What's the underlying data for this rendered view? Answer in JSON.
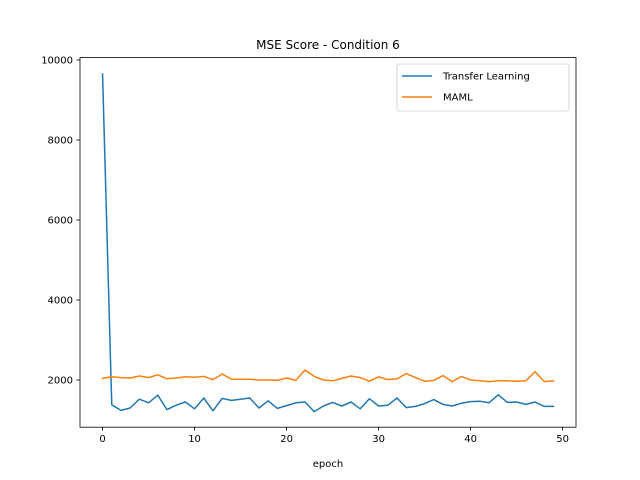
{
  "chart_data": {
    "type": "line",
    "title": "MSE Score - Condition 6",
    "xlabel": "epoch",
    "ylabel": "",
    "xlim": [
      -2.45,
      51.45
    ],
    "ylim": [
      820,
      10060
    ],
    "x_ticks": [
      0,
      10,
      20,
      30,
      40,
      50
    ],
    "y_ticks": [
      2000,
      4000,
      6000,
      8000,
      10000
    ],
    "grid": false,
    "legend_position": "top-right",
    "x": [
      0,
      1,
      2,
      3,
      4,
      5,
      6,
      7,
      8,
      9,
      10,
      11,
      12,
      13,
      14,
      15,
      16,
      17,
      18,
      19,
      20,
      21,
      22,
      23,
      24,
      25,
      26,
      27,
      28,
      29,
      30,
      31,
      32,
      33,
      34,
      35,
      36,
      37,
      38,
      39,
      40,
      41,
      42,
      43,
      44,
      45,
      46,
      47,
      48,
      49
    ],
    "series": [
      {
        "name": "Transfer Learning",
        "color": "#1f77b4",
        "values": [
          9650,
          1380,
          1240,
          1300,
          1520,
          1430,
          1620,
          1260,
          1370,
          1450,
          1280,
          1550,
          1230,
          1540,
          1490,
          1520,
          1550,
          1300,
          1480,
          1290,
          1360,
          1430,
          1450,
          1210,
          1350,
          1440,
          1350,
          1450,
          1280,
          1530,
          1350,
          1370,
          1550,
          1310,
          1340,
          1410,
          1510,
          1390,
          1350,
          1420,
          1460,
          1470,
          1430,
          1630,
          1440,
          1450,
          1390,
          1450,
          1340,
          1340
        ]
      },
      {
        "name": "MAML",
        "color": "#ff7f0e",
        "values": [
          2040,
          2080,
          2060,
          2050,
          2100,
          2060,
          2130,
          2030,
          2050,
          2080,
          2070,
          2090,
          2010,
          2150,
          2020,
          2020,
          2020,
          2000,
          2000,
          1990,
          2050,
          1990,
          2250,
          2090,
          2000,
          1980,
          2040,
          2100,
          2060,
          1970,
          2080,
          2010,
          2030,
          2160,
          2060,
          1970,
          1990,
          2110,
          1960,
          2090,
          2000,
          1980,
          1960,
          1980,
          1980,
          1970,
          1980,
          2210,
          1960,
          1980
        ]
      }
    ]
  }
}
